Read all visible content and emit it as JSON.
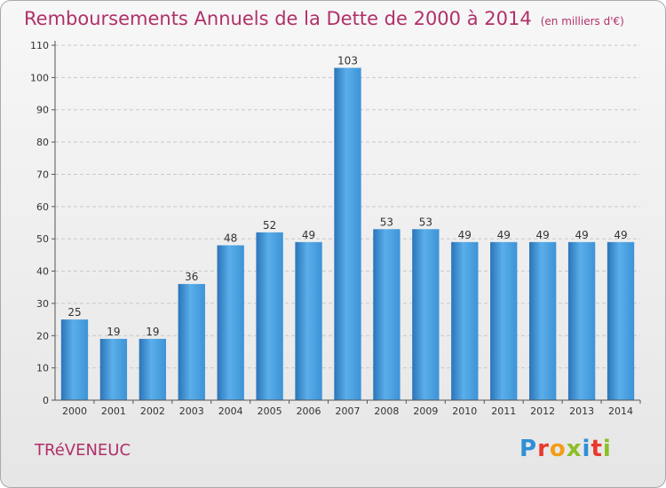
{
  "header": {
    "title": "Remboursements Annuels de la Dette de 2000 à 2014",
    "unit": "(en milliers d'€)"
  },
  "footer": {
    "commune": "TRéVENEUC",
    "logo_letters": [
      "P",
      "r",
      "o",
      "x",
      "i",
      "t",
      "i"
    ],
    "logo_colors": [
      "#2e8fd6",
      "#e8392c",
      "#f29d16",
      "#8cbf26",
      "#2e8fd6",
      "#e8392c",
      "#8cbf26"
    ]
  },
  "chart_data": {
    "type": "bar",
    "categories": [
      "2000",
      "2001",
      "2002",
      "2003",
      "2004",
      "2005",
      "2006",
      "2007",
      "2008",
      "2009",
      "2010",
      "2011",
      "2012",
      "2013",
      "2014"
    ],
    "values": [
      25,
      19,
      19,
      36,
      48,
      52,
      49,
      103,
      53,
      53,
      49,
      49,
      49,
      49,
      49
    ],
    "value_labels": [
      "25",
      "19",
      "19",
      "36",
      "48",
      "52",
      "49",
      "103",
      "53",
      "53",
      "49",
      "49",
      "49",
      "49",
      "49"
    ],
    "yticks": [
      0,
      10,
      20,
      30,
      40,
      50,
      60,
      70,
      80,
      90,
      100,
      110
    ],
    "ylim": [
      0,
      110
    ],
    "title": "Remboursements Annuels de la Dette de 2000 à 2014",
    "xlabel": "",
    "ylabel": "",
    "grid": true,
    "bar_color": "#3d93d6",
    "bar_color_light": "#5aaeea",
    "bar_color_dark": "#2a74b8",
    "grid_color": "#c8c8c8"
  }
}
